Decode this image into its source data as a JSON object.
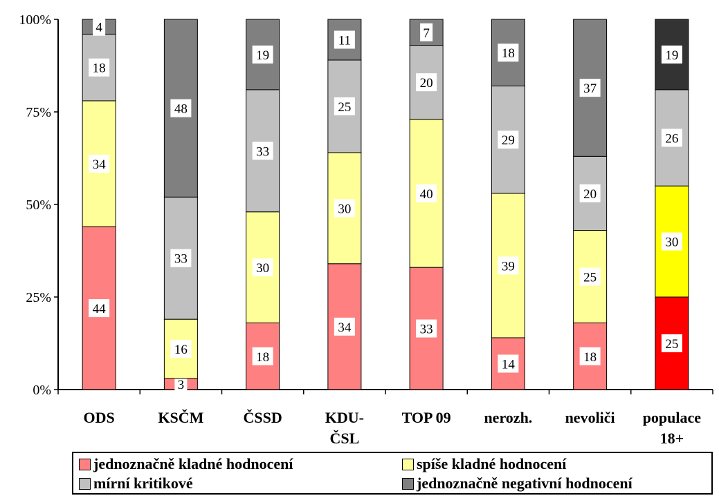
{
  "chart_data": {
    "type": "bar",
    "stacked": true,
    "percent": true,
    "categories": [
      "ODS",
      "KSČM",
      "ČSSD",
      "KDU-\nČSL",
      "TOP 09",
      "nerozh.",
      "nevoliči",
      "populace\n18+"
    ],
    "series": [
      {
        "name": "jednoznačně kladné hodnocení",
        "values": [
          44,
          3,
          18,
          34,
          33,
          14,
          18,
          25
        ]
      },
      {
        "name": "spíše kladné hodnocení",
        "values": [
          34,
          16,
          30,
          30,
          40,
          39,
          25,
          30
        ]
      },
      {
        "name": "mírní kritikové",
        "values": [
          18,
          33,
          33,
          25,
          20,
          29,
          20,
          26
        ]
      },
      {
        "name": "jednoznačně negativní hodnocení",
        "values": [
          4,
          48,
          19,
          11,
          7,
          18,
          37,
          19
        ]
      }
    ],
    "colors": {
      "default": [
        "#ff8080",
        "#ffff99",
        "#c0c0c0",
        "#808080"
      ],
      "highlight": [
        "#ff0000",
        "#ffff00",
        "#c0c0c0",
        "#333333"
      ]
    },
    "highlight_index": 7,
    "yticks": [
      "0%",
      "25%",
      "50%",
      "75%",
      "100%"
    ],
    "ylim": [
      0,
      100
    ]
  },
  "legend": {
    "items": [
      "jednoznačně kladné hodnocení",
      "spíše kladné hodnocení",
      "mírní kritikové",
      "jednoznačně negativní hodnocení"
    ]
  }
}
